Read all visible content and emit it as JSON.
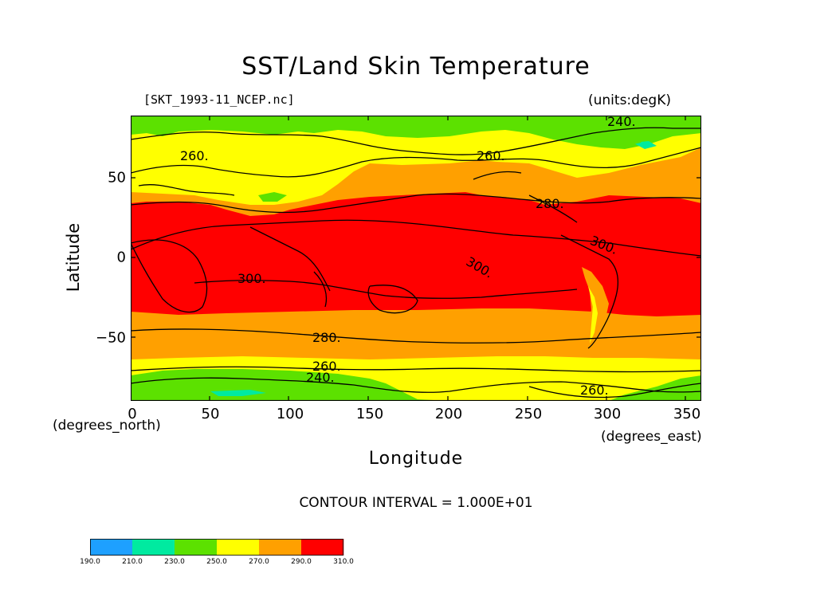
{
  "header": {
    "title": "SST/Land Skin Temperature",
    "filename": "[SKT_1993-11_NCEP.nc]",
    "units": "(units:degK)"
  },
  "axes": {
    "y_title": "Latitude",
    "x_title": "Longitude",
    "y_ticks": [
      "50",
      "0",
      "−50"
    ],
    "x_ticks": [
      "0",
      "50",
      "100",
      "150",
      "200",
      "250",
      "300",
      "350"
    ],
    "y_units_note": "(degrees_north)",
    "x_units_note": "(degrees_east)"
  },
  "footer": {
    "contour_interval": "CONTOUR INTERVAL = 1.000E+01"
  },
  "contour_labels": [
    "260.",
    "260.",
    "240.",
    "280.",
    "300.",
    "300.",
    "300.",
    "280.",
    "260.",
    "240.",
    "260."
  ],
  "colorbar": {
    "labels": [
      "190.0",
      "210.0",
      "230.0",
      "250.0",
      "270.0",
      "290.0",
      "310.0"
    ],
    "colors": [
      "#1ea0ff",
      "#00eaa0",
      "#5ce100",
      "#ffff00",
      "#ffa000",
      "#ff0000"
    ]
  },
  "chart_data": {
    "type": "heatmap",
    "title": "SST/Land Skin Temperature",
    "xlabel": "Longitude",
    "ylabel": "Latitude",
    "xlim": [
      0,
      360
    ],
    "ylim": [
      -90,
      90
    ],
    "x_ticks": [
      0,
      50,
      100,
      150,
      200,
      250,
      300,
      350
    ],
    "y_ticks": [
      -50,
      0,
      50
    ],
    "units": "degK",
    "contour_interval": 10,
    "levels": [
      190,
      210,
      230,
      250,
      270,
      290,
      310
    ],
    "zonal_bands": [
      {
        "lat_range": [
          78,
          90
        ],
        "value_range": [
          230,
          250
        ]
      },
      {
        "lat_range": [
          62,
          78
        ],
        "value_range": [
          250,
          270
        ]
      },
      {
        "lat_range": [
          45,
          62
        ],
        "value_range": [
          270,
          290
        ]
      },
      {
        "lat_range": [
          -38,
          45
        ],
        "value_range": [
          290,
          310
        ]
      },
      {
        "lat_range": [
          -62,
          -38
        ],
        "value_range": [
          270,
          290
        ]
      },
      {
        "lat_range": [
          -74,
          -62
        ],
        "value_range": [
          250,
          270
        ]
      },
      {
        "lat_range": [
          -90,
          -74
        ],
        "value_range": [
          230,
          250
        ]
      }
    ]
  }
}
